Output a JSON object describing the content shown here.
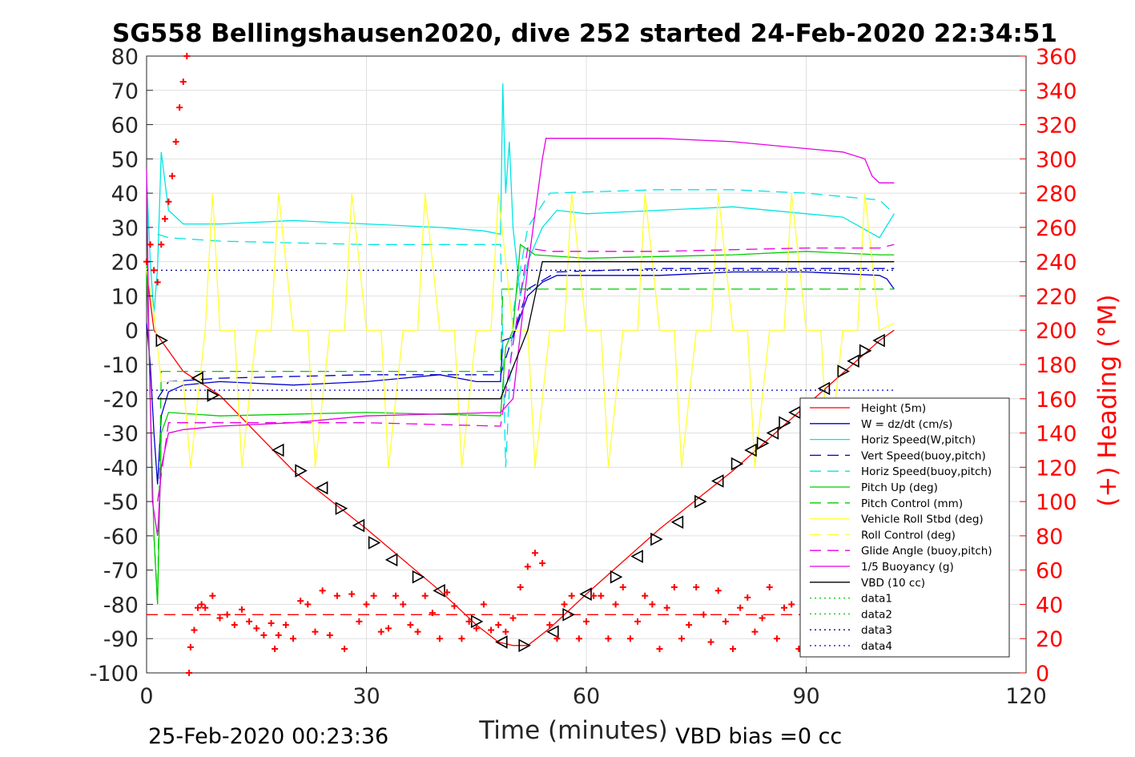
{
  "chart_data": {
    "type": "line",
    "title": "SG558 Bellingshausen2020, dive 252 started 24-Feb-2020 22:34:51",
    "xlabel": "Time (minutes)",
    "ylabel": "",
    "y2label": "(+) Heading (°M)",
    "xlim": [
      0,
      120
    ],
    "ylim": [
      -100,
      80
    ],
    "y2lim": [
      0,
      360
    ],
    "x_ticks": [
      0,
      30,
      60,
      90,
      120
    ],
    "y_ticks": [
      80,
      70,
      60,
      50,
      40,
      30,
      20,
      10,
      0,
      -10,
      -20,
      -30,
      -40,
      -50,
      -60,
      -70,
      -80,
      -90,
      -100
    ],
    "y2_ticks": [
      360,
      340,
      320,
      300,
      280,
      260,
      240,
      220,
      200,
      180,
      160,
      140,
      120,
      100,
      80,
      60,
      40,
      20,
      0
    ],
    "grid": true,
    "legend_position": "bottom-right",
    "footer_left": "25-Feb-2020 00:23:36",
    "footer_right": "VBD bias =0 cc",
    "colors": {
      "red": "#ff0000",
      "blue": "#0000cc",
      "cyan": "#00e5e5",
      "green": "#00cc00",
      "yellow": "#ffff33",
      "magenta": "#e600e6",
      "black": "#000000",
      "navy": "#000088"
    },
    "legend": [
      {
        "label": "Height (5m)",
        "color": "#ff0000",
        "dash": "solid"
      },
      {
        "label": "W = dz/dt (cm/s)",
        "color": "#0000cc",
        "dash": "solid"
      },
      {
        "label": "Horiz Speed(W,pitch)",
        "color": "#00e5e5",
        "dash": "solid"
      },
      {
        "label": "Vert Speed(buoy,pitch)",
        "color": "#0000cc",
        "dash": "dashed"
      },
      {
        "label": "Horiz Speed(buoy,pitch)",
        "color": "#00e5e5",
        "dash": "dashed"
      },
      {
        "label": "Pitch Up (deg)",
        "color": "#00cc00",
        "dash": "solid"
      },
      {
        "label": "Pitch Control (mm)",
        "color": "#00cc00",
        "dash": "dashed"
      },
      {
        "label": "Vehicle Roll Stbd (deg)",
        "color": "#ffff33",
        "dash": "solid"
      },
      {
        "label": "Roll Control (deg)",
        "color": "#ffff33",
        "dash": "dashed"
      },
      {
        "label": "Glide Angle (buoy,pitch)",
        "color": "#e600e6",
        "dash": "dashed"
      },
      {
        "label": "1/5 Buoyancy (g)",
        "color": "#e600e6",
        "dash": "solid"
      },
      {
        "label": "VBD (10 cc)",
        "color": "#000000",
        "dash": "solid"
      },
      {
        "label": "data1",
        "color": "#00cc00",
        "dash": "dotted"
      },
      {
        "label": "data2",
        "color": "#00cc00",
        "dash": "dotted"
      },
      {
        "label": "data3",
        "color": "#000088",
        "dash": "dotted"
      },
      {
        "label": "data4",
        "color": "#0000cc",
        "dash": "dotted"
      }
    ],
    "series": [
      {
        "name": "Height (5m)",
        "color": "#ff0000",
        "dash": "solid",
        "axis": "left",
        "x": [
          0,
          1,
          2,
          5,
          10,
          20,
          30,
          40,
          45,
          48,
          50,
          52,
          55,
          60,
          70,
          80,
          90,
          100,
          102
        ],
        "y": [
          17,
          0,
          -3,
          -12,
          -19,
          -41,
          -58,
          -76,
          -86,
          -91,
          -92,
          -92,
          -87,
          -77,
          -58,
          -41,
          -22,
          -3,
          0
        ]
      },
      {
        "name": "W = dz/dt (cm/s)",
        "color": "#0000cc",
        "dash": "solid",
        "axis": "left",
        "x": [
          0,
          0.5,
          1,
          1.5,
          2,
          3,
          5,
          10,
          20,
          30,
          35,
          40,
          45,
          48.3,
          48.6,
          50,
          52,
          54,
          56,
          60,
          70,
          80,
          90,
          100,
          101,
          102
        ],
        "y": [
          2,
          -10,
          -30,
          -45,
          -25,
          -18,
          -16,
          -15,
          -16,
          -15,
          -14,
          -13,
          -15,
          -15,
          -3,
          -2,
          10,
          14,
          16,
          16,
          16,
          17,
          17,
          16,
          15,
          12
        ]
      },
      {
        "name": "Horiz Speed(W,pitch)",
        "color": "#00e5e5",
        "dash": "solid",
        "axis": "left",
        "x": [
          0,
          0.5,
          1,
          1.5,
          2,
          3,
          5,
          10,
          20,
          30,
          40,
          46,
          48.3,
          48.6,
          49,
          49.5,
          50,
          51,
          52,
          54,
          56,
          60,
          70,
          80,
          90,
          95,
          100,
          102
        ],
        "y": [
          45,
          20,
          5,
          18,
          52,
          35,
          31,
          31,
          32,
          31,
          30,
          29,
          28,
          72,
          40,
          55,
          30,
          10,
          20,
          30,
          35,
          34,
          35,
          36,
          34,
          33,
          27,
          34
        ]
      },
      {
        "name": "Vert Speed(buoy,pitch)",
        "color": "#0000cc",
        "dash": "dashed",
        "axis": "left",
        "x": [
          1.5,
          3,
          10,
          30,
          48.3,
          52,
          56,
          70,
          90,
          102
        ],
        "y": [
          -20,
          -15,
          -14,
          -13,
          -13,
          12,
          17,
          18,
          18,
          18
        ]
      },
      {
        "name": "Horiz Speed(buoy,pitch)",
        "color": "#00e5e5",
        "dash": "dashed",
        "axis": "left",
        "x": [
          1.5,
          3,
          10,
          30,
          48.3,
          49,
          50,
          52,
          55,
          70,
          80,
          90,
          100,
          102
        ],
        "y": [
          28,
          27,
          26,
          25,
          25,
          -40,
          5,
          30,
          40,
          41,
          41,
          40,
          38,
          34
        ]
      },
      {
        "name": "Pitch Up (deg)",
        "color": "#00cc00",
        "dash": "solid",
        "axis": "left",
        "x": [
          0,
          1,
          1.5,
          2,
          3,
          10,
          30,
          48.3,
          49,
          50,
          51,
          53,
          60,
          80,
          90,
          100,
          102
        ],
        "y": [
          20,
          -60,
          -80,
          -30,
          -24,
          -25,
          -24,
          -25,
          -5,
          0,
          25,
          22,
          21,
          22,
          23,
          22,
          22
        ]
      },
      {
        "name": "Pitch Control (mm)",
        "color": "#00cc00",
        "dash": "dashed",
        "axis": "left",
        "x": [
          1,
          1.5,
          2,
          48.3,
          48.6,
          60,
          102
        ],
        "y": [
          -60,
          -80,
          -12,
          -12,
          12,
          12,
          12
        ]
      },
      {
        "name": "Vehicle Roll Stbd (deg)",
        "color": "#ffff33",
        "dash": "solid",
        "axis": "left",
        "x": [
          0,
          1,
          2,
          5,
          6,
          8,
          9,
          10,
          12,
          13,
          15,
          17,
          18,
          20,
          22,
          23,
          25,
          27,
          28,
          30,
          32,
          33,
          35,
          37,
          38,
          40,
          42,
          43,
          45,
          47,
          48,
          50,
          52,
          53,
          55,
          57,
          58,
          60,
          62,
          63,
          65,
          67,
          68,
          70,
          72,
          73,
          75,
          77,
          78,
          80,
          82,
          83,
          85,
          87,
          88,
          90,
          92,
          93,
          95,
          97,
          98,
          100,
          102
        ],
        "y": [
          18,
          5,
          -15,
          -15,
          -40,
          0,
          40,
          0,
          0,
          -40,
          0,
          0,
          40,
          0,
          0,
          -40,
          0,
          0,
          40,
          0,
          0,
          -40,
          0,
          0,
          40,
          0,
          0,
          -40,
          0,
          0,
          40,
          0,
          0,
          -40,
          0,
          0,
          40,
          0,
          0,
          -40,
          0,
          0,
          40,
          0,
          0,
          -40,
          0,
          0,
          40,
          0,
          0,
          -40,
          0,
          0,
          40,
          0,
          0,
          -40,
          0,
          0,
          40,
          0,
          2
        ]
      },
      {
        "name": "Glide Angle (buoy,pitch)",
        "color": "#e600e6",
        "dash": "dashed",
        "axis": "left",
        "x": [
          1.5,
          3,
          10,
          30,
          48.3,
          52,
          55,
          70,
          90,
          100,
          102
        ],
        "y": [
          -50,
          -27,
          -27,
          -27,
          -28,
          24,
          23,
          23,
          24,
          24,
          25
        ]
      },
      {
        "name": "1/5 Buoyancy (g)",
        "color": "#e600e6",
        "dash": "solid",
        "axis": "left",
        "x": [
          0,
          0.3,
          0.8,
          1.5,
          2,
          3,
          5,
          10,
          20,
          30,
          48.3,
          50,
          52,
          54,
          54.5,
          60,
          70,
          80,
          90,
          95,
          98,
          99,
          100,
          102
        ],
        "y": [
          47,
          0,
          -50,
          -60,
          -40,
          -30,
          -29,
          -28,
          -27,
          -25,
          -24,
          -20,
          18,
          50,
          56,
          56,
          56,
          55,
          53,
          52,
          50,
          45,
          43,
          43
        ]
      },
      {
        "name": "VBD (10 cc)",
        "color": "#000000",
        "dash": "solid",
        "axis": "left",
        "x": [
          1.5,
          2,
          48.3,
          52,
          54,
          102
        ],
        "y": [
          -20,
          -20,
          -20,
          0,
          20,
          20
        ]
      },
      {
        "name": "data3",
        "color": "#000088",
        "dash": "dotted",
        "axis": "left",
        "x": [
          0,
          102
        ],
        "y": [
          17.5,
          17.5
        ]
      },
      {
        "name": "data4",
        "color": "#0000cc",
        "dash": "dotted",
        "axis": "left",
        "x": [
          0,
          102
        ],
        "y": [
          -17.5,
          -17.5
        ]
      },
      {
        "name": "Heading reference",
        "color": "#ff0000",
        "dash": "dashed",
        "axis": "left",
        "x": [
          0,
          102
        ],
        "y": [
          -83,
          -83
        ]
      }
    ],
    "vbd_markers": {
      "color": "#000000",
      "x": [
        2,
        7,
        9,
        18,
        21,
        24,
        26.5,
        29,
        31,
        33.5,
        37,
        40,
        45,
        48.5,
        51.5,
        55.5,
        57.5,
        60,
        64,
        67,
        69.5,
        72.5,
        75.5,
        78,
        80.5,
        82.5,
        84,
        85.5,
        87,
        88.5,
        90,
        92.5,
        95,
        96.5,
        98,
        100
      ],
      "y": [
        -3,
        -14,
        -19,
        -35,
        -41,
        -46,
        -52,
        -57,
        -62,
        -67,
        -72,
        -76,
        -85,
        -91,
        -92,
        -88,
        -83,
        -77,
        -72,
        -66,
        -61,
        -56,
        -50,
        -44,
        -39,
        -35,
        -33,
        -30,
        -27,
        -24,
        -22,
        -17,
        -12,
        -9,
        -6,
        -3
      ]
    },
    "heading": {
      "name": "(+) Heading",
      "color": "#ff0000",
      "axis": "right",
      "x": [
        0,
        0.5,
        1,
        1.5,
        2,
        2.5,
        3,
        3.5,
        4,
        4.5,
        5,
        5.5,
        5.8,
        6,
        6.5,
        7,
        7.5,
        8,
        9,
        10,
        11,
        12,
        13,
        14,
        15,
        16,
        17,
        17.5,
        18,
        19,
        20,
        21,
        22,
        23,
        24,
        25,
        26,
        27,
        28,
        29,
        30,
        31,
        32,
        33,
        34,
        35,
        36,
        37,
        38,
        39,
        40,
        41,
        42,
        43,
        44,
        45,
        46,
        47,
        48,
        49,
        50,
        51,
        52,
        53,
        54,
        55,
        56,
        57,
        58,
        59,
        60,
        61,
        62,
        63,
        64,
        65,
        66,
        67,
        68,
        69,
        70,
        71,
        72,
        73,
        74,
        75,
        76,
        77,
        78,
        79,
        80,
        81,
        82,
        83,
        84,
        85,
        86,
        87,
        88,
        89,
        90,
        91,
        92,
        93,
        94,
        95,
        96,
        97,
        98,
        99
      ],
      "y": [
        240,
        250,
        235,
        228,
        250,
        265,
        275,
        290,
        310,
        330,
        345,
        360,
        0,
        15,
        25,
        38,
        40,
        38,
        45,
        32,
        34,
        28,
        37,
        30,
        26,
        22,
        29,
        14,
        22,
        28,
        20,
        42,
        40,
        24,
        48,
        22,
        45,
        14,
        46,
        30,
        40,
        45,
        24,
        26,
        45,
        40,
        28,
        24,
        45,
        35,
        20,
        47,
        39,
        20,
        30,
        26,
        40,
        25,
        28,
        24,
        32,
        50,
        62,
        70,
        64,
        28,
        20,
        40,
        45,
        20,
        30,
        45,
        45,
        20,
        40,
        50,
        20,
        30,
        45,
        40,
        14,
        38,
        50,
        20,
        28,
        50,
        34,
        18,
        48,
        30,
        14,
        38,
        44,
        24,
        32,
        50,
        20,
        38,
        40,
        14,
        50,
        18,
        26,
        42,
        30,
        20,
        38,
        24,
        40,
        30
      ]
    }
  }
}
